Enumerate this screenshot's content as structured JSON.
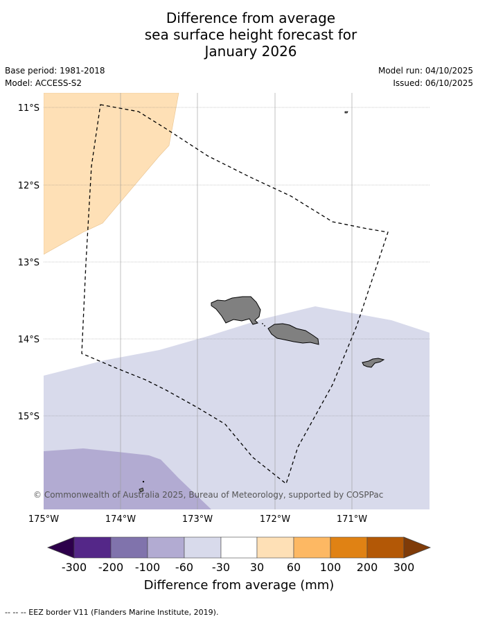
{
  "title_lines": [
    "Difference from average",
    "sea surface height forecast for",
    "January 2026"
  ],
  "base_period": "Base period: 1981-2018",
  "model": "Model: ACCESS-S2",
  "model_run": "Model run: 04/10/2025",
  "issued": "Issued: 06/10/2025",
  "map": {
    "lat_labels": [
      "11°S",
      "12°S",
      "13°S",
      "14°S",
      "15°S"
    ],
    "lon_labels": [
      "175°W",
      "174°W",
      "173°W",
      "172°W",
      "171°W"
    ],
    "copyright": "© Commonwealth of Australia 2025, Bureau of Meteorology, supported by COSPPac",
    "land_color": "#808080",
    "eez_line_style": "dashed black"
  },
  "colorbar": {
    "title": "Difference from average (mm)",
    "tick_labels": [
      "-300",
      "-200",
      "-100",
      "-60",
      "-30",
      "30",
      "60",
      "100",
      "200",
      "300"
    ],
    "colors": [
      "#2d004b",
      "#542788",
      "#8073ac",
      "#b2abd2",
      "#d8daeb",
      "#ffffff",
      "#fee0b6",
      "#fdb863",
      "#e08214",
      "#b35806",
      "#7f3b08"
    ]
  },
  "footnote": "--  --  -- EEZ border V11 (Flanders Marine Institute, 2019)."
}
